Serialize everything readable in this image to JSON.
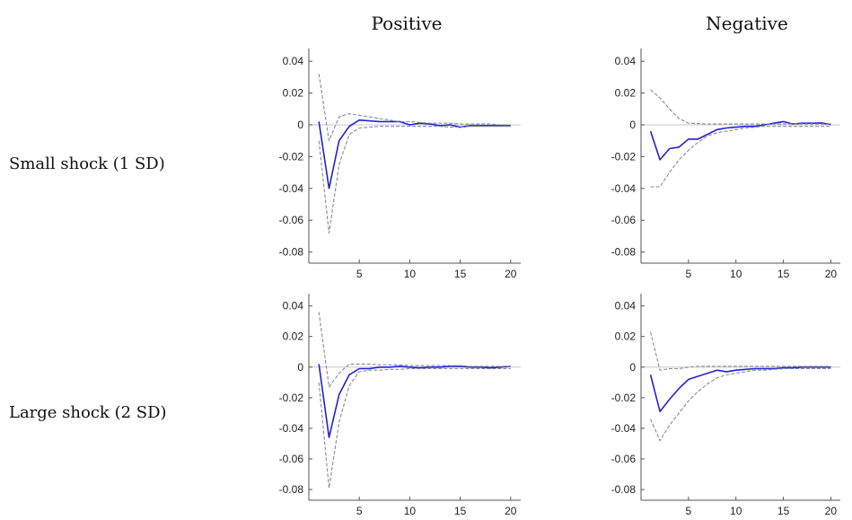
{
  "column_titles": [
    "Positive",
    "Negative"
  ],
  "row_labels": [
    "Small shock (1 SD)",
    "Large shock (2 SD)"
  ],
  "colors": {
    "response": "#2222cc",
    "band": "#8a8a9a",
    "zero": "#c8c8c8",
    "axis": "#555555"
  },
  "chart_data": [
    {
      "type": "line",
      "title": "Positive / Small shock (1 SD)",
      "x": [
        1,
        2,
        3,
        4,
        5,
        6,
        7,
        8,
        9,
        10,
        11,
        12,
        13,
        14,
        15,
        16,
        17,
        18,
        19,
        20
      ],
      "xlim": [
        0,
        21
      ],
      "ylim": [
        -0.087,
        0.048
      ],
      "xticks": [
        5,
        10,
        15,
        20
      ],
      "yticks": [
        0.04,
        0.02,
        0,
        -0.02,
        -0.04,
        -0.06,
        -0.08
      ],
      "ytick_labels": [
        "0.04",
        "0.02",
        "0",
        "-0.02",
        "-0.04",
        "-0.06",
        "-0.08"
      ],
      "series": [
        {
          "role": "response",
          "values": [
            0.002,
            -0.04,
            -0.01,
            -0.001,
            0.003,
            0.0025,
            0.002,
            0.002,
            0.002,
            0,
            0.001,
            0.0005,
            -0.0005,
            0,
            -0.0015,
            -0.0005,
            -0.0005,
            -0.0005,
            -0.0005,
            -0.0005
          ]
        },
        {
          "role": "upper",
          "values": [
            0.032,
            -0.01,
            0.005,
            0.007,
            0.006,
            0.005,
            0.004,
            0.003,
            0.002,
            0.002,
            0.0015,
            0.001,
            0.001,
            0.001,
            0.0005,
            0.0005,
            0.0005,
            0.0005,
            0,
            0
          ]
        },
        {
          "role": "lower",
          "values": [
            -0.01,
            -0.068,
            -0.025,
            -0.006,
            -0.002,
            -0.0015,
            -0.001,
            -0.001,
            -0.001,
            -0.001,
            -0.001,
            -0.001,
            -0.001,
            -0.0015,
            -0.0015,
            -0.001,
            -0.001,
            -0.001,
            -0.001,
            -0.001
          ]
        }
      ]
    },
    {
      "type": "line",
      "title": "Negative / Small shock (1 SD)",
      "x": [
        1,
        2,
        3,
        4,
        5,
        6,
        7,
        8,
        9,
        10,
        11,
        12,
        13,
        14,
        15,
        16,
        17,
        18,
        19,
        20
      ],
      "xlim": [
        0,
        21
      ],
      "ylim": [
        -0.087,
        0.048
      ],
      "xticks": [
        5,
        10,
        15,
        20
      ],
      "yticks": [
        0.04,
        0.02,
        0,
        -0.02,
        -0.04,
        -0.06,
        -0.08
      ],
      "ytick_labels": [
        "0.04",
        "0.02",
        "0",
        "-0.02",
        "-0.04",
        "-0.06",
        "-0.08"
      ],
      "series": [
        {
          "role": "response",
          "values": [
            -0.004,
            -0.022,
            -0.015,
            -0.014,
            -0.009,
            -0.009,
            -0.006,
            -0.003,
            -0.002,
            -0.0015,
            -0.001,
            -0.001,
            0,
            0.001,
            0.002,
            0.0005,
            0.001,
            0.001,
            0.0012,
            0.0002
          ]
        },
        {
          "role": "upper",
          "values": [
            0.022,
            0.017,
            0.01,
            0.004,
            0.001,
            0.0008,
            0.0005,
            0.0005,
            0.0005,
            0.0005,
            0.0005,
            0.0005,
            0.0005,
            0.0005,
            0.0005,
            0.0005,
            0.0005,
            0.0005,
            0.0005,
            0.0005
          ]
        },
        {
          "role": "lower",
          "values": [
            -0.039,
            -0.039,
            -0.03,
            -0.022,
            -0.016,
            -0.011,
            -0.007,
            -0.005,
            -0.004,
            -0.003,
            -0.002,
            -0.0015,
            -0.001,
            -0.001,
            -0.001,
            -0.001,
            -0.001,
            -0.001,
            -0.001,
            -0.001
          ]
        }
      ]
    },
    {
      "type": "line",
      "title": "Positive / Large shock (2 SD)",
      "x": [
        1,
        2,
        3,
        4,
        5,
        6,
        7,
        8,
        9,
        10,
        11,
        12,
        13,
        14,
        15,
        16,
        17,
        18,
        19,
        20
      ],
      "xlim": [
        0,
        21
      ],
      "ylim": [
        -0.087,
        0.048
      ],
      "xticks": [
        5,
        10,
        15,
        20
      ],
      "yticks": [
        0.04,
        0.02,
        0,
        -0.02,
        -0.04,
        -0.06,
        -0.08
      ],
      "ytick_labels": [
        "0.04",
        "0.02",
        "0",
        "-0.02",
        "-0.04",
        "-0.06",
        "-0.08"
      ],
      "series": [
        {
          "role": "response",
          "values": [
            0.002,
            -0.046,
            -0.018,
            -0.005,
            -0.001,
            -0.001,
            0,
            0,
            0.0005,
            0,
            -0.0005,
            0,
            0,
            0.0005,
            0.0005,
            0,
            0,
            -0.0005,
            0,
            0.0005
          ]
        },
        {
          "role": "upper",
          "values": [
            0.036,
            -0.013,
            -0.004,
            0.002,
            0.002,
            0.002,
            0.0015,
            0.0015,
            0.0015,
            0.001,
            0.001,
            0.001,
            0.001,
            0.001,
            0.001,
            0.0005,
            0.0005,
            0.0005,
            0.0005,
            0.0005
          ]
        },
        {
          "role": "lower",
          "values": [
            -0.01,
            -0.079,
            -0.036,
            -0.012,
            -0.003,
            -0.002,
            -0.002,
            -0.0015,
            -0.0015,
            -0.001,
            -0.001,
            -0.001,
            -0.001,
            -0.001,
            -0.001,
            -0.001,
            -0.001,
            -0.001,
            -0.001,
            -0.001
          ]
        }
      ]
    },
    {
      "type": "line",
      "title": "Negative / Large shock (2 SD)",
      "x": [
        1,
        2,
        3,
        4,
        5,
        6,
        7,
        8,
        9,
        10,
        11,
        12,
        13,
        14,
        15,
        16,
        17,
        18,
        19,
        20
      ],
      "xlim": [
        0,
        21
      ],
      "ylim": [
        -0.087,
        0.048
      ],
      "xticks": [
        5,
        10,
        15,
        20
      ],
      "yticks": [
        0.04,
        0.02,
        0,
        -0.02,
        -0.04,
        -0.06,
        -0.08
      ],
      "ytick_labels": [
        "0.04",
        "0.02",
        "0",
        "-0.02",
        "-0.04",
        "-0.06",
        "-0.08"
      ],
      "series": [
        {
          "role": "response",
          "values": [
            -0.005,
            -0.029,
            -0.021,
            -0.014,
            -0.008,
            -0.006,
            -0.004,
            -0.002,
            -0.003,
            -0.002,
            -0.0015,
            -0.001,
            -0.001,
            -0.001,
            -0.0005,
            -0.0005,
            0,
            0,
            0,
            0
          ]
        },
        {
          "role": "upper",
          "values": [
            0.023,
            -0.002,
            -0.001,
            -0.001,
            0,
            0.0005,
            0.0005,
            0.0005,
            0.0005,
            0.0005,
            0.0005,
            0.0005,
            0.0005,
            0.0005,
            0.0005,
            0.0005,
            0.0005,
            0.0005,
            0.0005,
            0.0005
          ]
        },
        {
          "role": "lower",
          "values": [
            -0.034,
            -0.048,
            -0.038,
            -0.03,
            -0.022,
            -0.016,
            -0.011,
            -0.007,
            -0.005,
            -0.004,
            -0.003,
            -0.002,
            -0.002,
            -0.0015,
            -0.001,
            -0.001,
            -0.001,
            -0.001,
            -0.001,
            -0.001
          ]
        }
      ]
    }
  ]
}
